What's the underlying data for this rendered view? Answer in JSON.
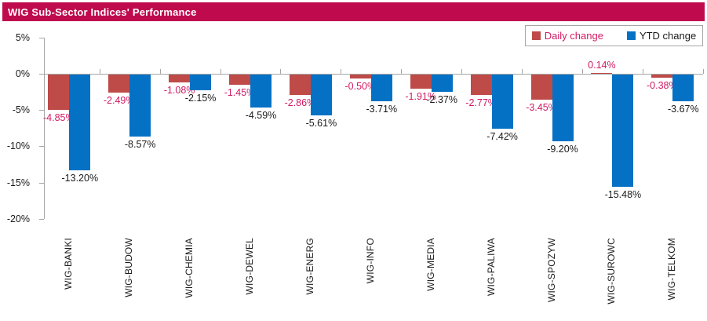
{
  "title": "WIG Sub-Sector Indices' Performance",
  "legend": {
    "daily_label": "Daily change",
    "ytd_label": "YTD change"
  },
  "colors": {
    "banner": "#bf0a4d",
    "daily_bar": "#be4b48",
    "ytd_bar": "#0471c4",
    "daily_text": "#d01a62",
    "ytd_text": "#1a1a1a",
    "axis": "#a6a6a6"
  },
  "chart_data": {
    "type": "bar",
    "title": "WIG Sub-Sector Indices' Performance",
    "categories": [
      "WIG-BANKI",
      "WIG-BUDOW",
      "WIG-CHEMIA",
      "WIG-DEWEL",
      "WIG-ENERG",
      "WIG-INFO",
      "WIG-MEDIA",
      "WIG-PALIWA",
      "WIG-SPOZYW",
      "WIG-SUROWC",
      "WIG-TELKOM"
    ],
    "series": [
      {
        "name": "Daily change",
        "color": "#be4b48",
        "label_color": "#d01a62",
        "values": [
          -4.85,
          -2.49,
          -1.08,
          -1.45,
          -2.86,
          -0.5,
          -1.91,
          -2.77,
          -3.45,
          0.14,
          -0.38
        ],
        "labels": [
          "-4.85%",
          "-2.49%",
          "-1.08%",
          "-1.45%",
          "-2.86%",
          "-0.50%",
          "-1.91%",
          "-2.77%",
          "-3.45%",
          "0.14%",
          "-0.38%"
        ]
      },
      {
        "name": "YTD change",
        "color": "#0471c4",
        "label_color": "#1a1a1a",
        "values": [
          -13.2,
          -8.57,
          -2.15,
          -4.59,
          -5.61,
          -3.71,
          -2.37,
          -7.42,
          -9.2,
          -15.48,
          -3.67
        ],
        "labels": [
          "-13.20%",
          "-8.57%",
          "-2.15%",
          "-4.59%",
          "-5.61%",
          "-3.71%",
          "-2.37%",
          "-7.42%",
          "-9.20%",
          "-15.48%",
          "-3.67%"
        ]
      }
    ],
    "y_axis": {
      "tick_labels": [
        "5%",
        "0%",
        "-5%",
        "-10%",
        "-15%",
        "-20%"
      ],
      "tick_values": [
        5,
        0,
        -5,
        -10,
        -15,
        -20
      ],
      "ylim": [
        -20,
        5
      ]
    },
    "grid": false,
    "legend_position": "top-right",
    "bar_label_position": "outside-end"
  }
}
